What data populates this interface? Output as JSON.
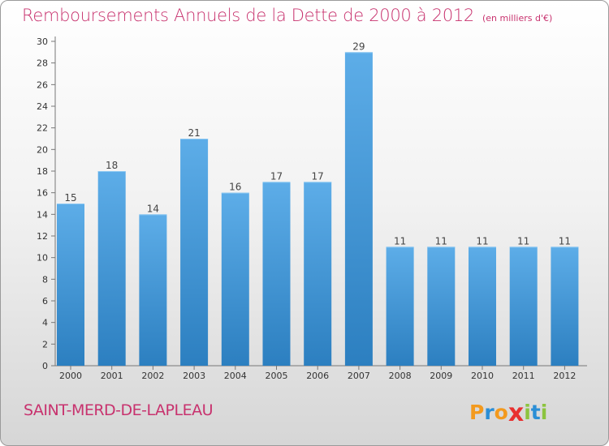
{
  "chart_data": {
    "type": "bar",
    "title": "Remboursements Annuels de la Dette de 2000 à 2012",
    "subtitle": "(en milliers d'€)",
    "categories": [
      "2000",
      "2001",
      "2002",
      "2003",
      "2004",
      "2005",
      "2006",
      "2007",
      "2008",
      "2009",
      "2010",
      "2011",
      "2012"
    ],
    "values": [
      15,
      18,
      14,
      21,
      16,
      17,
      17,
      29,
      11,
      11,
      11,
      11,
      11
    ],
    "data_labels": [
      "15",
      "18",
      "14",
      "21",
      "16",
      "17",
      "17",
      "29",
      "11",
      "11",
      "11",
      "11",
      "11"
    ],
    "ylim": [
      0,
      30
    ],
    "yticks": [
      "0",
      "2",
      "4",
      "6",
      "8",
      "10",
      "12",
      "14",
      "16",
      "18",
      "20",
      "22",
      "24",
      "26",
      "28",
      "30"
    ],
    "grid": false,
    "xlabel": "",
    "ylabel": "",
    "bar_color_light": "#5dade8",
    "bar_color_dark": "#2c7fc0"
  },
  "commune": "SAINT-MERD-DE-LAPLEAU",
  "logo": {
    "text": "Proxiti",
    "letters": [
      {
        "char": "P",
        "color": "#f39a1e"
      },
      {
        "char": "r",
        "color": "#2b8ed6"
      },
      {
        "char": "o",
        "color": "#f39a1e"
      },
      {
        "char": "x",
        "color": "#e8302f"
      },
      {
        "char": "i",
        "color": "#8cc43f"
      },
      {
        "char": "t",
        "color": "#2b8ed6"
      },
      {
        "char": "i",
        "color": "#8cc43f"
      }
    ]
  }
}
